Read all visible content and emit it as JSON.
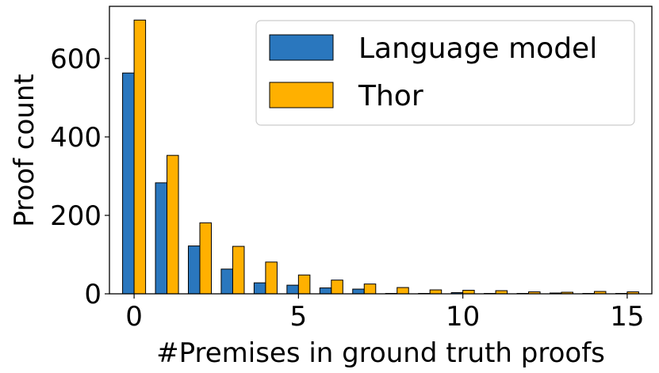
{
  "chart_data": {
    "type": "bar",
    "xlabel": "#Premises in ground truth proofs",
    "ylabel": "Proof count",
    "x": [
      0,
      1,
      2,
      3,
      4,
      5,
      6,
      7,
      8,
      9,
      10,
      11,
      12,
      13,
      14,
      15
    ],
    "series": [
      {
        "name": "Language model",
        "color": "#2a77be",
        "values": [
          563,
          283,
          122,
          63,
          28,
          22,
          15,
          12,
          1,
          1,
          3,
          1,
          1,
          2,
          1,
          1
        ]
      },
      {
        "name": "Thor",
        "color": "#ffb000",
        "values": [
          698,
          353,
          181,
          121,
          81,
          48,
          35,
          25,
          16,
          10,
          9,
          8,
          5,
          4,
          6,
          5
        ]
      }
    ],
    "xticks": [
      0,
      5,
      10,
      15
    ],
    "yticks": [
      0,
      200,
      400,
      600
    ],
    "xlim": [
      -0.75,
      15.75
    ],
    "ylim": [
      0,
      733
    ],
    "legend": "top-right"
  }
}
